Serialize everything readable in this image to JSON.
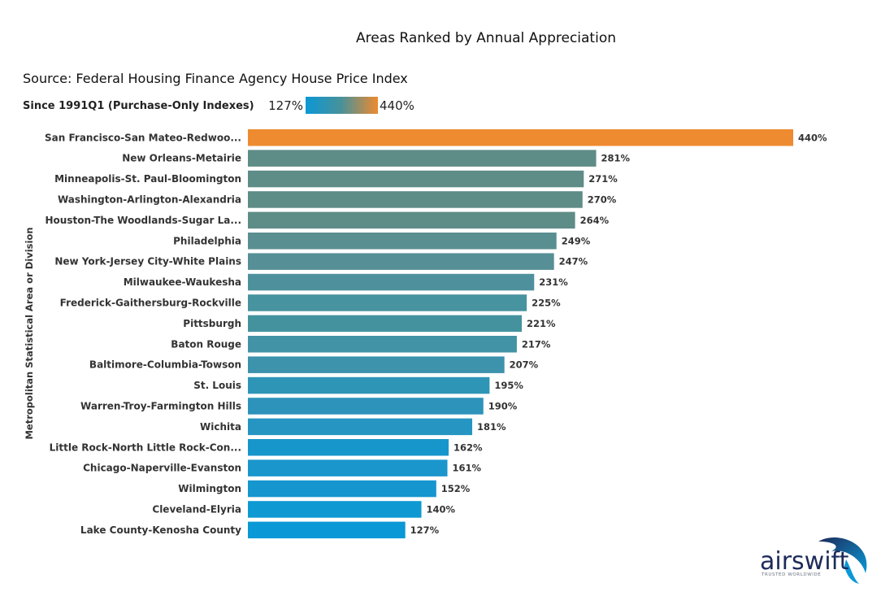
{
  "chart_data": {
    "type": "bar",
    "orientation": "horizontal",
    "title": "Areas Ranked by Annual Appreciation",
    "subtitle": "Source: Federal Housing Finance Agency House Price Index",
    "ylabel": "Metropolitan Statistical Area or Division",
    "legend": {
      "label": "Since 1991Q1 (Purchase-Only Indexes)",
      "min_label": "127%",
      "max_label": "440%",
      "min_color": "#0a98d6",
      "max_color": "#ee8a2f"
    },
    "xlim": [
      0,
      440
    ],
    "categories": [
      "San Francisco-San Mateo-Redwoo...",
      "New Orleans-Metairie",
      "Minneapolis-St. Paul-Bloomington",
      "Washington-Arlington-Alexandria",
      "Houston-The Woodlands-Sugar La...",
      "Philadelphia",
      "New York-Jersey City-White Plains",
      "Milwaukee-Waukesha",
      "Frederick-Gaithersburg-Rockville",
      "Pittsburgh",
      "Baton Rouge",
      "Baltimore-Columbia-Towson",
      "St. Louis",
      "Warren-Troy-Farmington Hills",
      "Wichita",
      "Little Rock-North Little Rock-Con...",
      "Chicago-Naperville-Evanston",
      "Wilmington",
      "Cleveland-Elyria",
      "Lake County-Kenosha County"
    ],
    "values": [
      440,
      281,
      271,
      270,
      264,
      249,
      247,
      231,
      225,
      221,
      217,
      207,
      195,
      190,
      181,
      162,
      161,
      152,
      140,
      127
    ],
    "value_labels": [
      "440%",
      "281%",
      "271%",
      "270%",
      "264%",
      "249%",
      "247%",
      "231%",
      "225%",
      "221%",
      "217%",
      "207%",
      "195%",
      "190%",
      "181%",
      "162%",
      "161%",
      "152%",
      "140%",
      "127%"
    ],
    "bar_colors": [
      "#ee8a2f",
      "#5e8c87",
      "#5e8c87",
      "#5e8c87",
      "#5e8c87",
      "#5a8f91",
      "#568f95",
      "#4e919d",
      "#47939f",
      "#45929f",
      "#4393a6",
      "#3d92ac",
      "#2f95b6",
      "#2d93bb",
      "#2695c2",
      "#1796cc",
      "#1a96cd",
      "#1596cf",
      "#0e99d3",
      "#0a98d6"
    ],
    "grid": false
  },
  "branding": {
    "logo_text": "airswift",
    "logo_tagline": "TRUSTED WORLDWIDE",
    "logo_colors": [
      "#1d2b5a",
      "#0a98d6"
    ]
  }
}
